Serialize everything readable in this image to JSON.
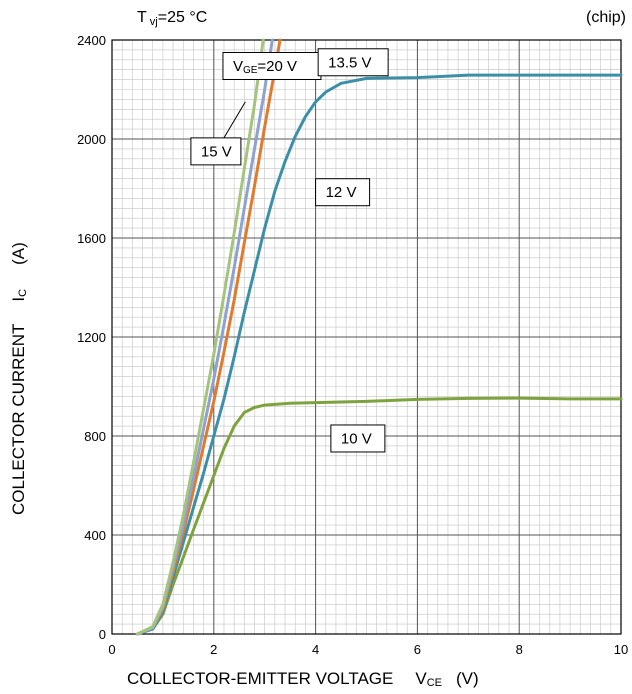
{
  "chart_data": {
    "type": "line",
    "title": "",
    "notes": {
      "temperature": "=25 °C",
      "temperature_symbol": "T",
      "temperature_sub": "vj",
      "scope": "(chip)"
    },
    "xlabel": {
      "text": "COLLECTOR-EMITTER VOLTAGE",
      "symbol": "V",
      "sub": "CE",
      "unit": "(V)"
    },
    "ylabel": {
      "text": "COLLECTOR CURRENT",
      "symbol": "I",
      "sub": "C",
      "unit": "(A)"
    },
    "xlim": [
      0,
      10
    ],
    "ylim": [
      0,
      2400
    ],
    "x_ticks": [
      0,
      2,
      4,
      6,
      8,
      10
    ],
    "y_ticks": [
      0,
      400,
      800,
      1200,
      1600,
      2000,
      2400
    ],
    "grid": true,
    "series": [
      {
        "name": "10 V",
        "color": "#7ea33e",
        "points": [
          [
            0.5,
            0
          ],
          [
            0.8,
            20
          ],
          [
            1.0,
            80
          ],
          [
            1.2,
            200
          ],
          [
            1.4,
            310
          ],
          [
            1.6,
            420
          ],
          [
            1.8,
            530
          ],
          [
            2.0,
            640
          ],
          [
            2.2,
            750
          ],
          [
            2.4,
            840
          ],
          [
            2.6,
            895
          ],
          [
            2.8,
            915
          ],
          [
            3.0,
            925
          ],
          [
            3.5,
            932
          ],
          [
            4.0,
            935
          ],
          [
            5.0,
            940
          ],
          [
            6.0,
            948
          ],
          [
            7.0,
            952
          ],
          [
            8.0,
            953
          ],
          [
            9.0,
            950
          ],
          [
            10.0,
            950
          ]
        ]
      },
      {
        "name": "12 V",
        "color": "#3c8fa8",
        "points": [
          [
            0.5,
            0
          ],
          [
            0.8,
            20
          ],
          [
            1.0,
            90
          ],
          [
            1.2,
            230
          ],
          [
            1.4,
            370
          ],
          [
            1.6,
            510
          ],
          [
            1.8,
            650
          ],
          [
            2.0,
            800
          ],
          [
            2.2,
            950
          ],
          [
            2.4,
            1120
          ],
          [
            2.6,
            1300
          ],
          [
            2.8,
            1470
          ],
          [
            3.0,
            1640
          ],
          [
            3.2,
            1790
          ],
          [
            3.4,
            1910
          ],
          [
            3.6,
            2010
          ],
          [
            3.8,
            2090
          ],
          [
            4.0,
            2150
          ],
          [
            4.2,
            2190
          ],
          [
            4.5,
            2225
          ],
          [
            5.0,
            2245
          ],
          [
            6.0,
            2248
          ],
          [
            7.0,
            2258
          ],
          [
            8.0,
            2258
          ],
          [
            9.0,
            2258
          ],
          [
            10.0,
            2258
          ]
        ]
      },
      {
        "name": "13.5 V",
        "color": "#e07b2e",
        "points": [
          [
            0.5,
            0
          ],
          [
            0.8,
            25
          ],
          [
            1.0,
            100
          ],
          [
            1.2,
            250
          ],
          [
            1.4,
            410
          ],
          [
            1.6,
            580
          ],
          [
            1.8,
            760
          ],
          [
            2.0,
            940
          ],
          [
            2.2,
            1140
          ],
          [
            2.4,
            1350
          ],
          [
            2.6,
            1580
          ],
          [
            2.8,
            1810
          ],
          [
            3.0,
            2050
          ],
          [
            3.2,
            2280
          ],
          [
            3.3,
            2400
          ]
        ]
      },
      {
        "name": "15 V",
        "color": "#8ea2d0",
        "points": [
          [
            0.5,
            0
          ],
          [
            0.8,
            25
          ],
          [
            1.0,
            110
          ],
          [
            1.2,
            270
          ],
          [
            1.4,
            440
          ],
          [
            1.6,
            630
          ],
          [
            1.8,
            830
          ],
          [
            2.0,
            1030
          ],
          [
            2.2,
            1250
          ],
          [
            2.4,
            1480
          ],
          [
            2.6,
            1720
          ],
          [
            2.8,
            1960
          ],
          [
            3.0,
            2200
          ],
          [
            3.15,
            2400
          ]
        ]
      },
      {
        "name": "20 V",
        "color": "#a4c47e",
        "points": [
          [
            0.5,
            0
          ],
          [
            0.8,
            30
          ],
          [
            1.0,
            120
          ],
          [
            1.2,
            290
          ],
          [
            1.4,
            480
          ],
          [
            1.6,
            690
          ],
          [
            1.8,
            910
          ],
          [
            2.0,
            1130
          ],
          [
            2.2,
            1370
          ],
          [
            2.4,
            1620
          ],
          [
            2.6,
            1880
          ],
          [
            2.8,
            2140
          ],
          [
            2.97,
            2400
          ]
        ]
      }
    ],
    "annotations": [
      {
        "text": "=20 V",
        "prefix": "V",
        "sub": "GE",
        "x": 2.18,
        "y": 2295
      },
      {
        "text": "13.5 V",
        "x": 4.05,
        "y": 2310
      },
      {
        "text": "15 V",
        "x": 1.55,
        "y": 1950
      },
      {
        "text": "12 V",
        "x": 4.0,
        "y": 1785
      },
      {
        "text": "10 V",
        "x": 4.3,
        "y": 790
      }
    ]
  }
}
